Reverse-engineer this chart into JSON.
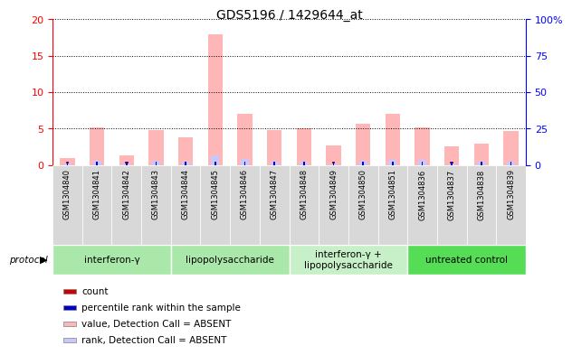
{
  "title": "GDS5196 / 1429644_at",
  "samples": [
    "GSM1304840",
    "GSM1304841",
    "GSM1304842",
    "GSM1304843",
    "GSM1304844",
    "GSM1304845",
    "GSM1304846",
    "GSM1304847",
    "GSM1304848",
    "GSM1304849",
    "GSM1304850",
    "GSM1304851",
    "GSM1304836",
    "GSM1304837",
    "GSM1304838",
    "GSM1304839"
  ],
  "value_absent": [
    1.0,
    5.2,
    1.3,
    4.8,
    3.8,
    18.0,
    7.0,
    4.8,
    5.0,
    2.7,
    5.6,
    7.0,
    5.1,
    2.5,
    2.9,
    4.7
  ],
  "rank_absent": [
    1.1,
    2.8,
    0.8,
    2.9,
    2.2,
    6.3,
    4.2,
    2.5,
    2.5,
    1.1,
    3.1,
    3.3,
    3.3,
    1.0,
    2.2,
    2.3
  ],
  "count_val": [
    1,
    1,
    1,
    1,
    1,
    1,
    1,
    1,
    1,
    1,
    1,
    1,
    1,
    1,
    1,
    1
  ],
  "rank_pct": [
    0.5,
    0.5,
    0.5,
    0.5,
    0.5,
    0.5,
    0.5,
    0.5,
    0.5,
    0.5,
    0.5,
    0.5,
    0.5,
    0.5,
    0.5,
    0.5
  ],
  "protocols": [
    {
      "label": "interferon-γ",
      "start": 0,
      "end": 4,
      "color": "#aae8aa"
    },
    {
      "label": "lipopolysaccharide",
      "start": 4,
      "end": 8,
      "color": "#aae8aa"
    },
    {
      "label": "interferon-γ +\nlipopolysaccharide",
      "start": 8,
      "end": 12,
      "color": "#c8f0c8"
    },
    {
      "label": "untreated control",
      "start": 12,
      "end": 16,
      "color": "#55dd55"
    }
  ],
  "ylim_left": [
    0,
    20
  ],
  "ylim_right": [
    0,
    100
  ],
  "yticks_left": [
    0,
    5,
    10,
    15,
    20
  ],
  "yticks_right": [
    0,
    25,
    50,
    75,
    100
  ],
  "color_value_absent": "#ffb6b6",
  "color_rank_absent": "#c8c8ff",
  "color_count": "#cc0000",
  "color_rank_pct": "#0000cc",
  "bg_color": "#ffffff",
  "xtick_bg": "#d8d8d8",
  "grid_color": "#000000"
}
